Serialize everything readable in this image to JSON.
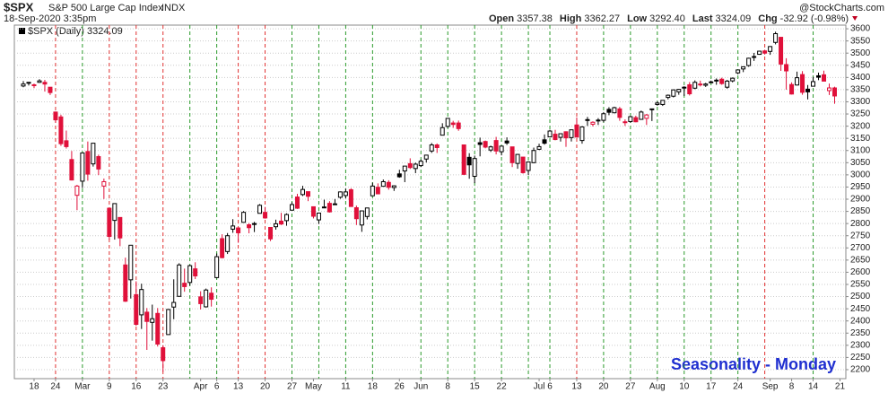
{
  "chart_data": {
    "type": "candlestick",
    "symbol": "$SPX",
    "name": "S&P 500 Large Cap Index",
    "exchange": "INDX",
    "timestamp": "18-Sep-2020 3:35pm",
    "quote": [
      {
        "label": "Open",
        "value": "3357.38"
      },
      {
        "label": "High",
        "value": "3362.27"
      },
      {
        "label": "Low",
        "value": "3292.40"
      },
      {
        "label": "Last",
        "value": "3324.09"
      },
      {
        "label": "Chg",
        "value": "-32.92 (-0.98%)"
      }
    ],
    "watermark": "@StockCharts.com",
    "annotation": "Seasonality - Monday",
    "ylim": [
      2163,
      3615
    ],
    "yticks": [
      2200,
      2250,
      2300,
      2350,
      2400,
      2450,
      2500,
      2550,
      2600,
      2650,
      2700,
      2750,
      2800,
      2850,
      2900,
      2950,
      3000,
      3050,
      3100,
      3150,
      3200,
      3250,
      3300,
      3350,
      3400,
      3450,
      3500,
      3550,
      3600
    ],
    "grid": true,
    "categories": [
      null,
      null,
      "18",
      null,
      null,
      null,
      "24",
      null,
      null,
      null,
      null,
      "Mar",
      null,
      null,
      null,
      null,
      "9",
      null,
      null,
      null,
      null,
      "16",
      null,
      null,
      null,
      null,
      "23",
      null,
      null,
      null,
      null,
      null,
      null,
      "Apr",
      null,
      null,
      "6",
      null,
      null,
      null,
      "13",
      null,
      null,
      null,
      null,
      "20",
      null,
      null,
      null,
      null,
      "27",
      null,
      null,
      null,
      "May",
      null,
      null,
      null,
      null,
      null,
      "11",
      null,
      null,
      null,
      null,
      "18",
      null,
      null,
      null,
      null,
      "26",
      null,
      null,
      null,
      "Jun",
      null,
      null,
      null,
      null,
      "8",
      null,
      null,
      null,
      null,
      "15",
      null,
      null,
      null,
      null,
      "22",
      null,
      null,
      null,
      null,
      null,
      null,
      "Jul",
      null,
      "6",
      null,
      null,
      null,
      null,
      "13",
      null,
      null,
      null,
      null,
      "20",
      null,
      null,
      null,
      null,
      "27",
      null,
      null,
      null,
      null,
      "Aug",
      null,
      null,
      null,
      null,
      "10",
      null,
      null,
      null,
      null,
      "17",
      null,
      null,
      null,
      null,
      "24",
      null,
      null,
      null,
      null,
      null,
      "Sep",
      null,
      null,
      null,
      "8",
      null,
      null,
      null,
      "14",
      null,
      null,
      null,
      null,
      "21"
    ],
    "series": [
      {
        "name": "$SPX (Daily) 3324.09",
        "up_color": "#000000",
        "down_color": "#e0103a",
        "open": [
          3365,
          3378,
          3370,
          3380,
          3380,
          3360,
          3258,
          3238,
          3140,
          3063,
          2916,
          2974,
          3096,
          3045,
          3075,
          2954,
          2863,
          2813,
          2825,
          2630,
          2569,
          2508,
          2425,
          2436,
          2394,
          2431,
          2290,
          2344,
          2457,
          2501,
          2555,
          2558,
          2614,
          2499,
          2458,
          2514,
          2578,
          2738,
          2685,
          2777,
          2782,
          2805,
          2795,
          2799,
          2842,
          2846,
          2784,
          2787,
          2810,
          2812,
          2855,
          2909,
          2919,
          2931,
          2869,
          2815,
          2868,
          2883,
          2879,
          2908,
          2915,
          2939,
          2865,
          2794,
          2829,
          2914,
          2949,
          2953,
          2969,
          2948,
          3004,
          3016,
          3046,
          3026,
          3038,
          3065,
          3098,
          3123,
          3163,
          3199,
          3213,
          3213,
          3123,
          3072,
          2994,
          3132,
          3137,
          3102,
          3141,
          3095,
          3139,
          3115,
          3047,
          3073,
          3018,
          3050,
          3105,
          3144,
          3156,
          3167,
          3154,
          3177,
          3153,
          3205,
          3141,
          3225,
          3208,
          3224,
          3224,
          3269,
          3255,
          3271,
          3218,
          3219,
          3235,
          3228,
          3232,
          3270,
          3289,
          3289,
          3318,
          3323,
          3341,
          3357,
          3370,
          3356,
          3372,
          3368,
          3380,
          3387,
          3393,
          3360,
          3386,
          3419,
          3435,
          3449,
          3486,
          3495,
          3509,
          3507,
          3544,
          3565,
          3453,
          3371,
          3369,
          3412,
          3352,
          3364,
          3407,
          3411,
          3346,
          3357,
          null
        ],
        "high": [
          3385,
          3381,
          3375,
          3393,
          3390,
          3360,
          3260,
          3247,
          3182,
          3098,
          2959,
          3091,
          3137,
          3130,
          3083,
          2985,
          2863,
          2883,
          2825,
          2660,
          2711,
          2563,
          2553,
          2453,
          2467,
          2453,
          2300,
          2449,
          2571,
          2637,
          2615,
          2631,
          2641,
          2522,
          2533,
          2538,
          2677,
          2756,
          2761,
          2818,
          2782,
          2851,
          2802,
          2807,
          2880,
          2868,
          2785,
          2816,
          2844,
          2842,
          2888,
          2922,
          2955,
          2931,
          2869,
          2845,
          2898,
          2892,
          2901,
          2932,
          2944,
          2945,
          2874,
          2852,
          2865,
          2968,
          2965,
          2981,
          2978,
          2957,
          3021,
          3036,
          3068,
          3050,
          3063,
          3081,
          3131,
          3129,
          3212,
          3233,
          3222,
          3223,
          3123,
          3089,
          3079,
          3153,
          3141,
          3120,
          3156,
          3120,
          3154,
          3115,
          3086,
          3073,
          3053,
          3112,
          3128,
          3166,
          3185,
          3185,
          3171,
          3179,
          3186,
          3236,
          3200,
          3238,
          3220,
          3233,
          3258,
          3278,
          3280,
          3279,
          3228,
          3242,
          3243,
          3264,
          3250,
          3272,
          3302,
          3307,
          3330,
          3351,
          3353,
          3364,
          3381,
          3388,
          3387,
          3378,
          3387,
          3396,
          3399,
          3390,
          3400,
          3432,
          3444,
          3481,
          3501,
          3510,
          3514,
          3529,
          3588,
          3565,
          3479,
          3380,
          3424,
          3426,
          3369,
          3402,
          3420,
          3428,
          3375,
          3362,
          null
        ],
        "low": [
          3360,
          3367,
          3356,
          3378,
          3342,
          3328,
          3214,
          3119,
          3108,
          2977,
          2855,
          2946,
          2976,
          3034,
          2999,
          2901,
          2734,
          2734,
          2707,
          2478,
          2492,
          2380,
          2367,
          2281,
          2319,
          2295,
          2192,
          2344,
          2407,
          2500,
          2520,
          2545,
          2572,
          2447,
          2455,
          2459,
          2575,
          2657,
          2675,
          2762,
          2721,
          2805,
          2760,
          2765,
          2842,
          2820,
          2728,
          2775,
          2794,
          2791,
          2855,
          2860,
          2913,
          2892,
          2821,
          2798,
          2863,
          2845,
          2876,
          2902,
          2903,
          2869,
          2794,
          2766,
          2817,
          2914,
          2922,
          2953,
          2939,
          2934,
          2988,
          2970,
          3024,
          3007,
          3032,
          3051,
          3090,
          3090,
          3163,
          3193,
          3193,
          3181,
          2999,
          2984,
          2966,
          3076,
          3109,
          3094,
          3084,
          3080,
          3123,
          3032,
          3025,
          3005,
          2999,
          3048,
          3102,
          3124,
          3156,
          3142,
          3137,
          3115,
          3137,
          3154,
          3128,
          3201,
          3199,
          3205,
          3216,
          3245,
          3253,
          3222,
          3201,
          3214,
          3216,
          3226,
          3205,
          3221,
          3284,
          3283,
          3310,
          3318,
          3329,
          3324,
          3326,
          3352,
          3363,
          3361,
          3379,
          3370,
          3370,
          3354,
          3380,
          3413,
          3422,
          3444,
          3468,
          3493,
          3494,
          3493,
          3536,
          3427,
          3350,
          3330,
          3367,
          3329,
          3310,
          3364,
          3389,
          3384,
          3328,
          3292,
          null
        ],
        "close": [
          3373,
          3380,
          3370,
          3386,
          3373,
          3338,
          3226,
          3128,
          3116,
          2979,
          2954,
          3090,
          3003,
          3130,
          3024,
          2972,
          2747,
          2882,
          2741,
          2481,
          2711,
          2386,
          2529,
          2398,
          2409,
          2305,
          2237,
          2447,
          2476,
          2630,
          2541,
          2627,
          2585,
          2471,
          2527,
          2489,
          2664,
          2660,
          2750,
          2790,
          2762,
          2846,
          2783,
          2800,
          2875,
          2823,
          2737,
          2799,
          2798,
          2837,
          2878,
          2863,
          2940,
          2912,
          2830,
          2843,
          2868,
          2848,
          2881,
          2930,
          2930,
          2870,
          2820,
          2852,
          2864,
          2954,
          2922,
          2972,
          2949,
          2955,
          2992,
          3036,
          3030,
          3044,
          3056,
          3081,
          3123,
          3112,
          3194,
          3232,
          3207,
          3190,
          3002,
          3041,
          3067,
          3125,
          3114,
          3115,
          3098,
          3118,
          3131,
          3050,
          3084,
          3009,
          3053,
          3100,
          3116,
          3130,
          3180,
          3145,
          3169,
          3152,
          3185,
          3155,
          3197,
          3227,
          3216,
          3225,
          3251,
          3257,
          3276,
          3236,
          3216,
          3239,
          3218,
          3258,
          3246,
          3271,
          3295,
          3306,
          3327,
          3349,
          3351,
          3360,
          3333,
          3380,
          3373,
          3373,
          3382,
          3389,
          3375,
          3385,
          3397,
          3431,
          3444,
          3479,
          3485,
          3508,
          3500,
          3527,
          3580,
          3455,
          3427,
          3332,
          3399,
          3339,
          3341,
          3383,
          3401,
          3385,
          3357,
          3324,
          null
        ]
      }
    ],
    "monday_lines": [
      {
        "at": 6,
        "color": "#e03030"
      },
      {
        "at": 11,
        "color": "#2a9a2a"
      },
      {
        "at": 16,
        "color": "#e03030"
      },
      {
        "at": 21,
        "color": "#e03030"
      },
      {
        "at": 26,
        "color": "#e03030"
      },
      {
        "at": 31,
        "color": "#2a9a2a"
      },
      {
        "at": 36,
        "color": "#2a9a2a"
      },
      {
        "at": 40,
        "color": "#e03030"
      },
      {
        "at": 45,
        "color": "#e03030"
      },
      {
        "at": 50,
        "color": "#2a9a2a"
      },
      {
        "at": 55,
        "color": "#2a9a2a"
      },
      {
        "at": 60,
        "color": "#2a9a2a"
      },
      {
        "at": 65,
        "color": "#2a9a2a"
      },
      {
        "at": 74,
        "color": "#2a9a2a"
      },
      {
        "at": 79,
        "color": "#2a9a2a"
      },
      {
        "at": 84,
        "color": "#2a9a2a"
      },
      {
        "at": 89,
        "color": "#2a9a2a"
      },
      {
        "at": 94,
        "color": "#2a9a2a"
      },
      {
        "at": 98,
        "color": "#2a9a2a"
      },
      {
        "at": 103,
        "color": "#e03030"
      },
      {
        "at": 108,
        "color": "#2a9a2a"
      },
      {
        "at": 113,
        "color": "#2a9a2a"
      },
      {
        "at": 118,
        "color": "#2a9a2a"
      },
      {
        "at": 123,
        "color": "#2a9a2a"
      },
      {
        "at": 128,
        "color": "#2a9a2a"
      },
      {
        "at": 133,
        "color": "#2a9a2a"
      },
      {
        "at": 138,
        "color": "#e03030"
      },
      {
        "at": 147,
        "color": "#2a9a2a"
      }
    ]
  }
}
